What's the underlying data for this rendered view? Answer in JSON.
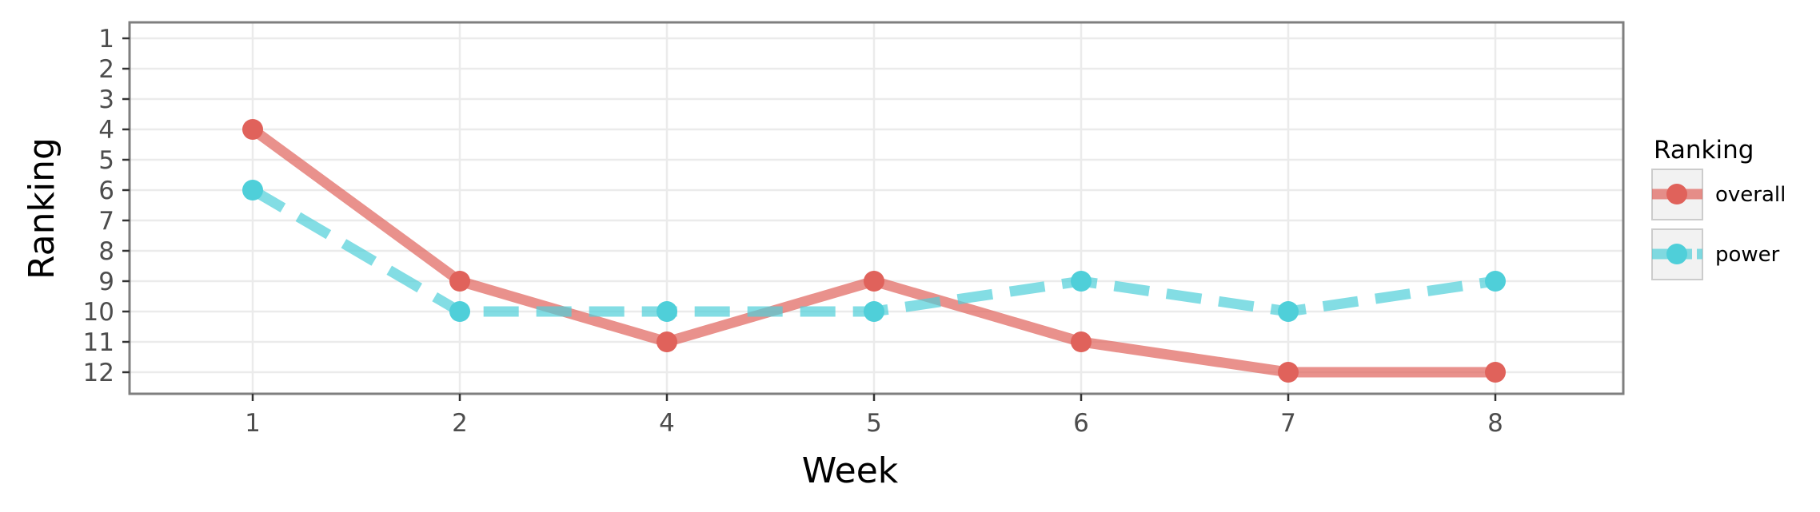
{
  "chart_data": {
    "type": "line",
    "title": "",
    "xlabel": "Week",
    "ylabel": "Ranking",
    "categories": [
      "1",
      "2",
      "4",
      "5",
      "6",
      "7",
      "8"
    ],
    "y_ticks": [
      "1",
      "2",
      "3",
      "4",
      "5",
      "6",
      "7",
      "8",
      "9",
      "10",
      "11",
      "12"
    ],
    "ylim": [
      1,
      12
    ],
    "y_reversed": true,
    "grid": true,
    "legend": {
      "title": "Ranking",
      "placement": "right"
    },
    "series": [
      {
        "name": "overall",
        "values": [
          4,
          9,
          11,
          9,
          11,
          12,
          12
        ],
        "color": "#e0625b",
        "line_style": "solid"
      },
      {
        "name": "power",
        "values": [
          6,
          10,
          10,
          10,
          9,
          10,
          9
        ],
        "color": "#4fcfd9",
        "line_style": "dashed"
      }
    ]
  }
}
